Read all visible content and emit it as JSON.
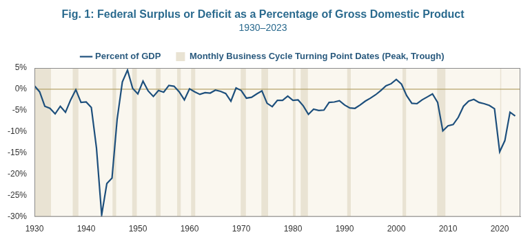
{
  "chart_data": {
    "type": "line",
    "title": "Fig. 1: Federal Surplus or Deficit as a Percentage of Gross Domestic Product",
    "subtitle": "1930–2023",
    "legend": "top",
    "grid": false,
    "x": [
      1930,
      1931,
      1932,
      1933,
      1934,
      1935,
      1936,
      1937,
      1938,
      1939,
      1940,
      1941,
      1942,
      1943,
      1944,
      1945,
      1946,
      1947,
      1948,
      1949,
      1950,
      1951,
      1952,
      1953,
      1954,
      1955,
      1956,
      1957,
      1958,
      1959,
      1960,
      1961,
      1962,
      1963,
      1964,
      1965,
      1966,
      1967,
      1968,
      1969,
      1970,
      1971,
      1972,
      1973,
      1974,
      1975,
      1976,
      1977,
      1978,
      1979,
      1980,
      1981,
      1982,
      1983,
      1984,
      1985,
      1986,
      1987,
      1988,
      1989,
      1990,
      1991,
      1992,
      1993,
      1994,
      1995,
      1996,
      1997,
      1998,
      1999,
      2000,
      2001,
      2002,
      2003,
      2004,
      2005,
      2006,
      2007,
      2008,
      2009,
      2010,
      2011,
      2012,
      2013,
      2014,
      2015,
      2016,
      2017,
      2018,
      2019,
      2020,
      2021,
      2022,
      2023
    ],
    "series": [
      {
        "name": "Percent of GDP",
        "color": "#1d4f7c",
        "values": [
          0.8,
          -0.6,
          -4.0,
          -4.5,
          -5.8,
          -4.0,
          -5.4,
          -2.5,
          -0.1,
          -3.1,
          -3.0,
          -4.3,
          -13.9,
          -29.6,
          -22.2,
          -20.9,
          -7.0,
          1.7,
          4.5,
          0.2,
          -1.1,
          1.9,
          -0.4,
          -1.7,
          -0.3,
          -0.7,
          0.9,
          0.7,
          -0.6,
          -2.5,
          0.1,
          -0.6,
          -1.2,
          -0.8,
          -0.9,
          -0.2,
          -0.5,
          -1.0,
          -2.8,
          0.3,
          -0.3,
          -2.1,
          -1.9,
          -1.1,
          -0.4,
          -3.3,
          -4.1,
          -2.6,
          -2.6,
          -1.6,
          -2.6,
          -2.5,
          -3.9,
          -5.9,
          -4.7,
          -5.0,
          -4.9,
          -3.1,
          -3.0,
          -2.7,
          -3.7,
          -4.4,
          -4.5,
          -3.7,
          -2.8,
          -2.1,
          -1.3,
          -0.3,
          0.8,
          1.3,
          2.3,
          1.2,
          -1.5,
          -3.3,
          -3.4,
          -2.5,
          -1.8,
          -1.1,
          -3.1,
          -9.8,
          -8.6,
          -8.3,
          -6.6,
          -4.0,
          -2.8,
          -2.4,
          -3.1,
          -3.4,
          -3.8,
          -4.6,
          -14.7,
          -12.1,
          -5.4,
          -6.3
        ]
      }
    ],
    "shading": {
      "name": "Monthly Business Cycle Turning Point Dates (Peak, Trough)",
      "color": "#e9e3d3",
      "ranges": [
        [
          1929.6,
          1933.2
        ],
        [
          1937.4,
          1938.5
        ],
        [
          1945.1,
          1945.8
        ],
        [
          1948.9,
          1949.8
        ],
        [
          1953.5,
          1954.4
        ],
        [
          1957.6,
          1958.3
        ],
        [
          1960.3,
          1961.1
        ],
        [
          1969.9,
          1970.9
        ],
        [
          1973.9,
          1975.2
        ],
        [
          1980.0,
          1980.5
        ],
        [
          1981.5,
          1982.9
        ],
        [
          1990.5,
          1991.2
        ],
        [
          2001.2,
          2001.9
        ],
        [
          2007.9,
          2009.5
        ],
        [
          2020.1,
          2020.3
        ]
      ]
    },
    "reference_line": {
      "value": 0,
      "color": "#b5a36a"
    },
    "xlim": [
      1930,
      2024
    ],
    "xticks": [
      1930,
      1940,
      1950,
      1960,
      1970,
      1980,
      1990,
      2000,
      2010,
      2020
    ],
    "ylim": [
      -30,
      5
    ],
    "yticks": [
      {
        "value": -30,
        "label": "-30%"
      },
      {
        "value": -25,
        "label": "-25%"
      },
      {
        "value": -20,
        "label": "-20%"
      },
      {
        "value": -15,
        "label": "-15%"
      },
      {
        "value": -10,
        "label": "-10%"
      },
      {
        "value": -5,
        "label": "-5%"
      },
      {
        "value": 0,
        "label": "0%"
      },
      {
        "value": 5,
        "label": "5%"
      }
    ]
  }
}
